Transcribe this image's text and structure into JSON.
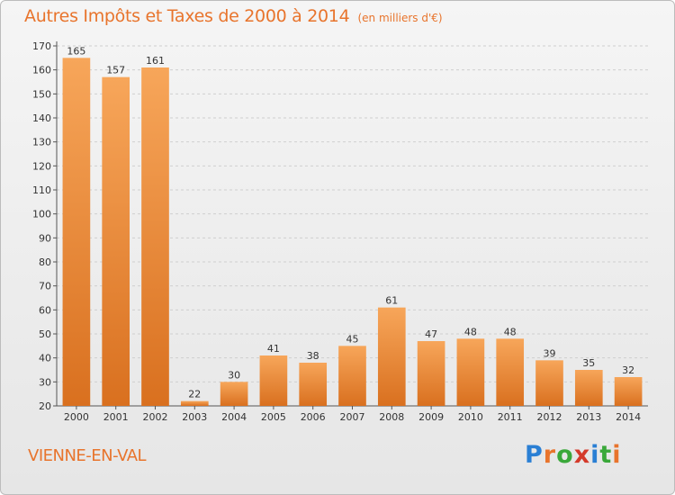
{
  "title": "Autres Impôts et Taxes de 2000 à 2014",
  "title_unit": "(en milliers d'€)",
  "city": "VIENNE-EN-VAL",
  "logo": {
    "letters": [
      "P",
      "r",
      "o",
      "x",
      "i",
      "t",
      "i"
    ],
    "colors": [
      "#2a7fd4",
      "#e8742c",
      "#3aa83a",
      "#d43a2a",
      "#2a7fd4",
      "#3aa83a",
      "#e8742c"
    ]
  },
  "colors": {
    "accent": "#e8742c",
    "bar_top": "#f7a65a",
    "bar_bottom": "#d9701f",
    "grid": "#cfcfcf"
  },
  "chart_data": {
    "type": "bar",
    "title": "Autres Impôts et Taxes de 2000 à 2014",
    "ylabel": "",
    "xlabel": "",
    "categories": [
      "2000",
      "2001",
      "2002",
      "2003",
      "2004",
      "2005",
      "2006",
      "2007",
      "2008",
      "2009",
      "2010",
      "2011",
      "2012",
      "2013",
      "2014"
    ],
    "values": [
      165,
      157,
      161,
      22,
      30,
      41,
      38,
      45,
      61,
      47,
      48,
      48,
      39,
      35,
      32
    ],
    "ylim": [
      20,
      170
    ],
    "yticks": [
      20,
      30,
      40,
      50,
      60,
      70,
      80,
      90,
      100,
      110,
      120,
      130,
      140,
      150,
      160,
      170
    ],
    "grid": true,
    "data_labels": true
  }
}
